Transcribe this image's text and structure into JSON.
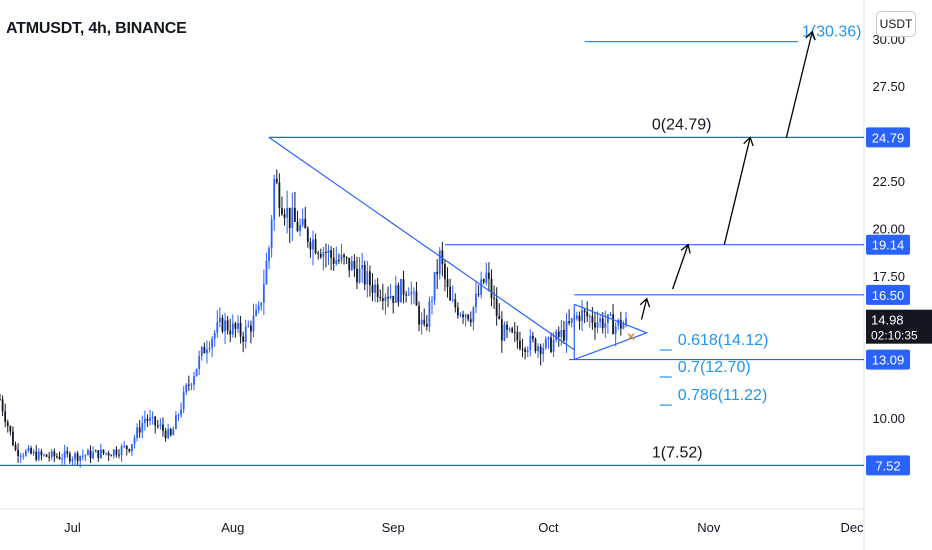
{
  "header": {
    "title": "ATMUSDT, 4h, BINANCE"
  },
  "currency": "USDT",
  "colors": {
    "line": "#2962ff",
    "candle": "#131722",
    "accent": "#2196f3",
    "badge": "#2962ff",
    "price_badge": "#131722",
    "arrow": "#000000"
  },
  "chart_data": {
    "type": "candlestick",
    "title": "ATMUSDT, 4h, BINANCE",
    "x_ticks": [
      "Jul",
      "Aug",
      "Sep",
      "Oct",
      "Nov",
      "Dec"
    ],
    "x_range": [
      "2021-06-17",
      "2021-12-01"
    ],
    "y_ticks": [
      "10.00",
      "17.50",
      "20.00",
      "22.50",
      "27.50"
    ],
    "ylim": [
      5.8,
      31.5
    ],
    "last_price": "14.98",
    "countdown": "02:10:35",
    "price_axis_labels": [
      "24.79",
      "19.14",
      "16.50",
      "13.09",
      "7.52"
    ],
    "fib_levels": [
      {
        "label": "1(30.36)",
        "value": 30.36
      },
      {
        "label": "0(24.79)",
        "value": 24.79
      },
      {
        "label": "0.618(14.12)",
        "value": 14.12
      },
      {
        "label": "0.7(12.70)",
        "value": 12.7
      },
      {
        "label": "0.786(11.22)",
        "value": 11.22
      },
      {
        "label": "1(7.52)",
        "value": 7.52
      }
    ],
    "trendline": {
      "start": [
        "2021-08-08",
        24.79
      ],
      "end": [
        "2021-10-06",
        13.6
      ]
    },
    "price_path": [
      [
        "2021-06-17",
        11.0
      ],
      [
        "2021-06-20",
        8.3
      ],
      [
        "2021-06-25",
        8.0
      ],
      [
        "2021-07-01",
        8.0
      ],
      [
        "2021-07-08",
        8.2
      ],
      [
        "2021-07-12",
        8.5
      ],
      [
        "2021-07-15",
        10.0
      ],
      [
        "2021-07-18",
        9.5
      ],
      [
        "2021-07-20",
        9.0
      ],
      [
        "2021-07-23",
        11.5
      ],
      [
        "2021-07-27",
        14.0
      ],
      [
        "2021-07-30",
        15.0
      ],
      [
        "2021-08-03",
        14.4
      ],
      [
        "2021-08-06",
        15.5
      ],
      [
        "2021-08-08",
        19.0
      ],
      [
        "2021-08-09",
        22.5
      ],
      [
        "2021-08-12",
        20.5
      ],
      [
        "2021-08-16",
        19.5
      ],
      [
        "2021-08-20",
        18.5
      ],
      [
        "2021-08-24",
        18.0
      ],
      [
        "2021-08-28",
        17.0
      ],
      [
        "2021-09-01",
        16.5
      ],
      [
        "2021-09-04",
        17.0
      ],
      [
        "2021-09-07",
        14.5
      ],
      [
        "2021-09-10",
        18.5
      ],
      [
        "2021-09-12",
        16.0
      ],
      [
        "2021-09-16",
        15.5
      ],
      [
        "2021-09-19",
        17.5
      ],
      [
        "2021-09-22",
        14.5
      ],
      [
        "2021-09-26",
        14.0
      ],
      [
        "2021-10-01",
        13.8
      ],
      [
        "2021-10-04",
        14.5
      ],
      [
        "2021-10-07",
        15.5
      ],
      [
        "2021-10-10",
        15.2
      ],
      [
        "2021-10-14",
        14.9
      ],
      [
        "2021-10-16",
        14.98
      ]
    ],
    "projection_arrows": [
      {
        "from": [
          "2021-10-25",
          16.8
        ],
        "to": [
          "2021-10-28",
          19.14
        ]
      },
      {
        "from": [
          "2021-11-04",
          19.14
        ],
        "to": [
          "2021-11-09",
          24.79
        ]
      },
      {
        "from": [
          "2021-11-16",
          24.79
        ],
        "to": [
          "2021-11-21",
          30.36
        ]
      }
    ],
    "grid": false,
    "legend": "none"
  }
}
